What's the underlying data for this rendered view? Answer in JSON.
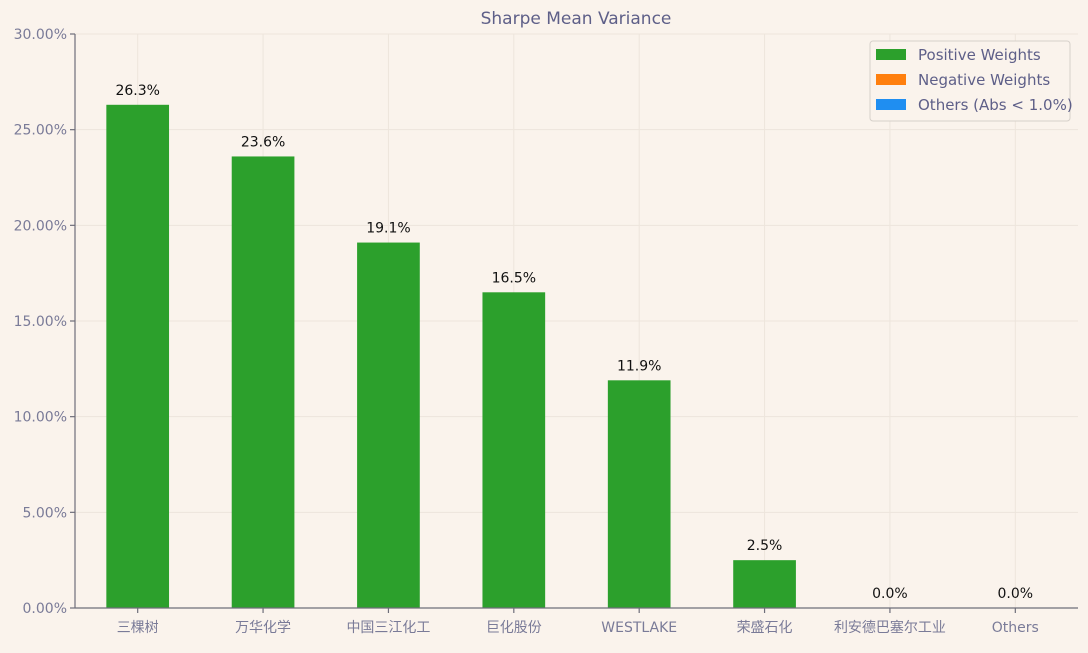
{
  "chart_data": {
    "type": "bar",
    "title": "Sharpe Mean Variance",
    "xlabel": "",
    "ylabel": "",
    "categories": [
      "三棵树",
      "万华化学",
      "中国三江化工",
      "巨化股份",
      "WESTLAKE",
      "荣盛石化",
      "利安德巴塞尔工业",
      "Others"
    ],
    "values": [
      26.3,
      23.6,
      19.1,
      16.5,
      11.9,
      2.5,
      0.0,
      0.0
    ],
    "value_labels": [
      "26.3%",
      "23.6%",
      "19.1%",
      "16.5%",
      "11.9%",
      "2.5%",
      "0.0%",
      "0.0%"
    ],
    "ylim": [
      0,
      30
    ],
    "yticks": [
      0,
      5,
      10,
      15,
      20,
      25,
      30
    ],
    "ytick_labels": [
      "0.00%",
      "5.00%",
      "10.00%",
      "15.00%",
      "20.00%",
      "25.00%",
      "30.00%"
    ],
    "grid": true,
    "legend_position": "top-right",
    "legend": [
      {
        "label": "Positive Weights",
        "color": "#2CA02C"
      },
      {
        "label": "Negative Weights",
        "color": "#FF7F0E"
      },
      {
        "label": "Others (Abs < 1.0%)",
        "color": "#1F8EF1"
      }
    ],
    "bar_color": "#2CA02C"
  }
}
